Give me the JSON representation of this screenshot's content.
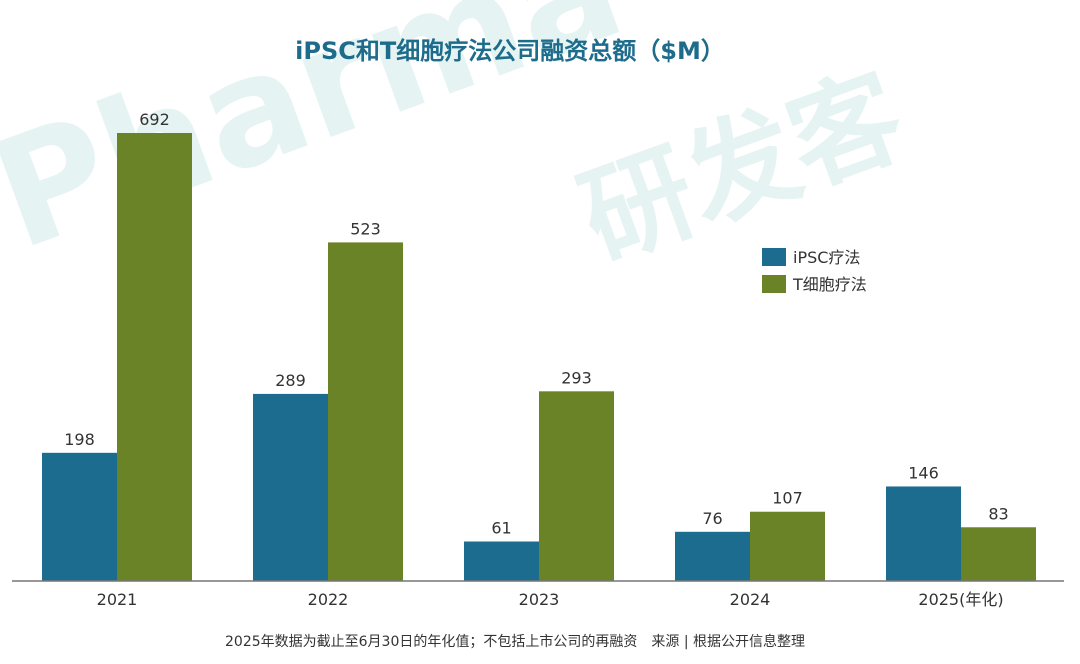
{
  "title": "iPSC和T细胞疗法公司融资总额（$M）",
  "footnote": "2025年数据为截止至6月30日的年化值；不包括上市公司的再融资　来源 | 根据公开信息整理",
  "watermark": {
    "text_a": "Pharma",
    "text_b": "研发客"
  },
  "colors": {
    "ipsc": "#1b6c8e",
    "tcell": "#6a8327",
    "title": "#1d6c8c",
    "axis": "#777777"
  },
  "chart_data": {
    "type": "bar",
    "title": "iPSC和T细胞疗法公司融资总额（$M）",
    "categories": [
      "2021",
      "2022",
      "2023",
      "2024",
      "2025(年化)"
    ],
    "series": [
      {
        "name": "iPSC疗法",
        "values": [
          198,
          289,
          61,
          76,
          146
        ]
      },
      {
        "name": "T细胞疗法",
        "values": [
          692,
          523,
          293,
          107,
          83
        ]
      }
    ],
    "ylim": [
      0,
      692
    ],
    "legend": "right",
    "grid": false
  }
}
